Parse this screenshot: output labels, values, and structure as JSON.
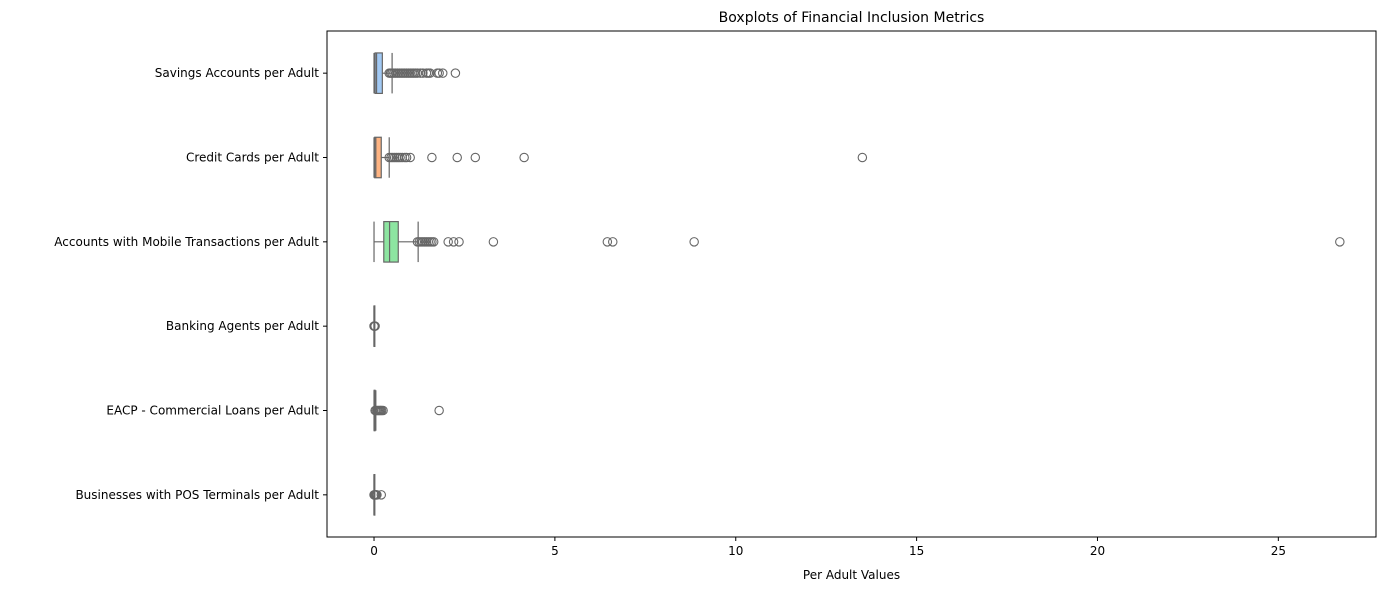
{
  "chart_data": {
    "type": "boxplot",
    "orientation": "horizontal",
    "title": "Boxplots of Financial Inclusion Metrics",
    "xlabel": "Per Adult Values",
    "ylabel": "",
    "xlim": [
      -1.3,
      27.7
    ],
    "xticks": [
      0,
      5,
      10,
      15,
      20,
      25
    ],
    "grid": false,
    "series": [
      {
        "name": "Savings Accounts per Adult",
        "color": "#a1c9f4",
        "whisker_low": 0.0,
        "q1": 0.03,
        "median": 0.07,
        "q3": 0.23,
        "whisker_high": 0.5,
        "outliers": [
          0.42,
          0.46,
          0.5,
          0.55,
          0.6,
          0.65,
          0.7,
          0.75,
          0.8,
          0.85,
          0.9,
          0.95,
          1.0,
          1.05,
          1.1,
          1.15,
          1.2,
          1.28,
          1.35,
          1.45,
          1.5,
          1.55,
          1.75,
          1.8,
          1.9,
          2.25
        ]
      },
      {
        "name": "Credit Cards per Adult",
        "color": "#ffb482",
        "whisker_low": 0.0,
        "q1": 0.02,
        "median": 0.05,
        "q3": 0.2,
        "whisker_high": 0.42,
        "outliers": [
          0.42,
          0.47,
          0.52,
          0.57,
          0.62,
          0.67,
          0.72,
          0.78,
          0.85,
          0.9,
          1.0,
          1.6,
          2.3,
          2.8,
          4.15,
          13.5
        ]
      },
      {
        "name": "Accounts with Mobile Transactions per Adult",
        "color": "#8de5a1",
        "whisker_low": 0.0,
        "q1": 0.27,
        "median": 0.43,
        "q3": 0.67,
        "whisker_high": 1.22,
        "outliers": [
          1.2,
          1.25,
          1.3,
          1.35,
          1.4,
          1.45,
          1.5,
          1.55,
          1.6,
          1.65,
          2.05,
          2.2,
          2.35,
          3.3,
          6.45,
          6.6,
          8.85,
          26.7
        ]
      },
      {
        "name": "Banking Agents per Adult",
        "color": "#ff9f9b",
        "whisker_low": 0.0,
        "q1": 0.0,
        "median": 0.0,
        "q3": 0.003,
        "whisker_high": 0.01,
        "outliers": [
          0.0,
          0.01,
          0.02,
          0.03
        ]
      },
      {
        "name": "EACP - Commercial Loans per Adult",
        "color": "#d0bbff",
        "whisker_low": 0.0,
        "q1": 0.005,
        "median": 0.01,
        "q3": 0.02,
        "whisker_high": 0.05,
        "outliers": [
          0.03,
          0.06,
          0.09,
          0.12,
          0.15,
          0.18,
          0.21,
          0.25,
          1.8
        ]
      },
      {
        "name": "Businesses with POS Terminals per Adult",
        "color": "#debb9b",
        "whisker_low": 0.0,
        "q1": 0.0,
        "median": 0.0,
        "q3": 0.002,
        "whisker_high": 0.005,
        "outliers": [
          0.0,
          0.01,
          0.02,
          0.04,
          0.06,
          0.08,
          0.2
        ]
      }
    ]
  }
}
